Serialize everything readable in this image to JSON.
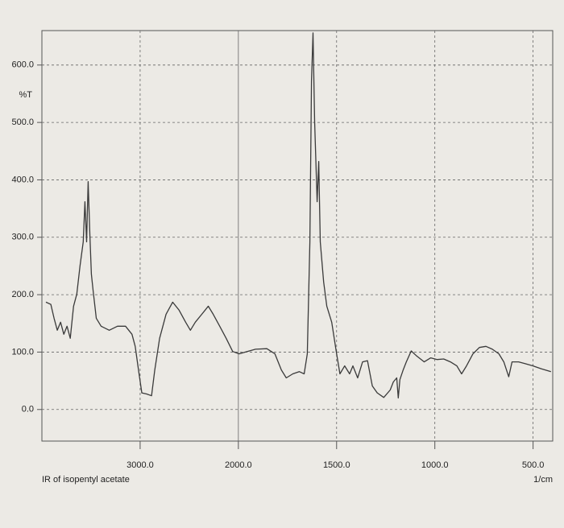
{
  "chart_data": {
    "type": "line",
    "title": "IR of isopentyl acetate",
    "x_label": "1/cm",
    "y_label": "%T",
    "color": "#3a3a3a",
    "grid": true,
    "xlim": [
      4000,
      400
    ],
    "x_scale_break": 2000,
    "x_break_expansion": 2,
    "ylim": [
      -55,
      660
    ],
    "xticks": [
      {
        "value": 3000,
        "label": "3000.0"
      },
      {
        "value": 2000,
        "label": "2000.0"
      },
      {
        "value": 1500,
        "label": "1500.0"
      },
      {
        "value": 1000,
        "label": "1000.0"
      },
      {
        "value": 500,
        "label": "500.0"
      }
    ],
    "yticks": [
      {
        "value": 0,
        "label": "0.0"
      },
      {
        "value": 100,
        "label": "100.0"
      },
      {
        "value": 200,
        "label": "200.0"
      },
      {
        "value": 300,
        "label": "300.0"
      },
      {
        "value": 400,
        "label": "400.0"
      },
      {
        "value": 500,
        "label": "500.0"
      },
      {
        "value": 600,
        "label": "600.0"
      }
    ],
    "x": [
      3959,
      3909,
      3876,
      3843,
      3810,
      3777,
      3744,
      3711,
      3678,
      3645,
      3612,
      3579,
      3562,
      3545,
      3529,
      3512,
      3496,
      3479,
      3446,
      3397,
      3314,
      3231,
      3149,
      3083,
      3050,
      3017,
      2983,
      2934,
      2884,
      2851,
      2802,
      2736,
      2669,
      2603,
      2537,
      2488,
      2438,
      2372,
      2306,
      2256,
      2190,
      2124,
      2058,
      1996,
      1955,
      1913,
      1855,
      1814,
      1781,
      1756,
      1723,
      1690,
      1665,
      1649,
      1636,
      1628,
      1620,
      1612,
      1599,
      1591,
      1583,
      1566,
      1550,
      1525,
      1500,
      1483,
      1459,
      1434,
      1417,
      1393,
      1368,
      1343,
      1318,
      1293,
      1260,
      1227,
      1211,
      1194,
      1186,
      1178,
      1161,
      1145,
      1120,
      1095,
      1054,
      1021,
      988,
      955,
      921,
      888,
      864,
      839,
      806,
      773,
      740,
      707,
      674,
      649,
      624,
      607,
      574,
      541,
      500,
      459,
      409
    ],
    "values": [
      187,
      183,
      159,
      138,
      152,
      131,
      145,
      124,
      180,
      201,
      250,
      292,
      362,
      292,
      397,
      306,
      236,
      208,
      159,
      145,
      138,
      145,
      145,
      131,
      110,
      69,
      29,
      27,
      24,
      69,
      124,
      166,
      187,
      173,
      152,
      138,
      152,
      166,
      180,
      166,
      145,
      124,
      101,
      97,
      101,
      105,
      106,
      97,
      69,
      55,
      62,
      66,
      62,
      97,
      292,
      572,
      656,
      502,
      362,
      432,
      292,
      222,
      180,
      152,
      97,
      62,
      76,
      62,
      76,
      55,
      83,
      85,
      41,
      29,
      21,
      34,
      48,
      55,
      20,
      52,
      69,
      83,
      102,
      94,
      83,
      90,
      87,
      88,
      83,
      76,
      62,
      76,
      97,
      108,
      110,
      105,
      97,
      83,
      57,
      83,
      83,
      80,
      76,
      71,
      66
    ]
  }
}
